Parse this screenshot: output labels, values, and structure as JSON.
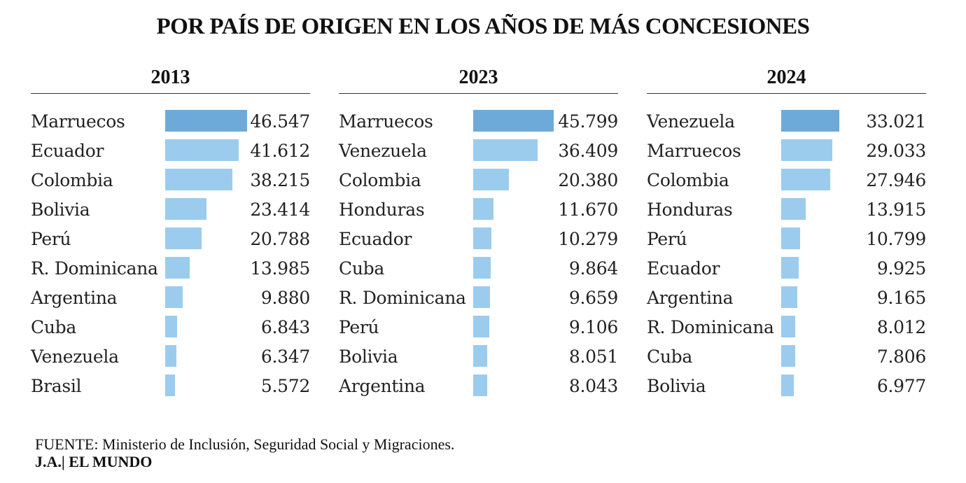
{
  "title": "POR PAÍS DE ORIGEN EN LOS AÑOS DE MÁS CONCESIONES",
  "source": "FUENTE: Ministerio de Inclusión, Seguridad Social y Migraciones.",
  "credit": "J.A.| EL MUNDO",
  "colors": {
    "top_bar": "#6eaad9",
    "bar": "#9ccced"
  },
  "chart_data": [
    {
      "type": "bar",
      "orientation": "horizontal",
      "title": "2013",
      "categories": [
        "Marruecos",
        "Ecuador",
        "Colombia",
        "Bolivia",
        "Perú",
        "R. Dominicana",
        "Argentina",
        "Cuba",
        "Venezuela",
        "Brasil"
      ],
      "values": [
        46547,
        41612,
        38215,
        23414,
        20788,
        13985,
        9880,
        6843,
        6347,
        5572
      ],
      "labels": [
        "46.547",
        "41.612",
        "38.215",
        "23.414",
        "20.788",
        "13.985",
        "9.880",
        "6.843",
        "6.347",
        "5.572"
      ],
      "xlim": [
        0,
        46547
      ]
    },
    {
      "type": "bar",
      "orientation": "horizontal",
      "title": "2023",
      "categories": [
        "Marruecos",
        "Venezuela",
        "Colombia",
        "Honduras",
        "Ecuador",
        "Cuba",
        "R. Dominicana",
        "Perú",
        "Bolivia",
        "Argentina"
      ],
      "values": [
        45799,
        36409,
        20380,
        11670,
        10279,
        9864,
        9659,
        9106,
        8051,
        8043
      ],
      "labels": [
        "45.799",
        "36.409",
        "20.380",
        "11.670",
        "10.279",
        "9.864",
        "9.659",
        "9.106",
        "8.051",
        "8.043"
      ],
      "xlim": [
        0,
        46547
      ]
    },
    {
      "type": "bar",
      "orientation": "horizontal",
      "title": "2024",
      "categories": [
        "Venezuela",
        "Marruecos",
        "Colombia",
        "Honduras",
        "Perú",
        "Ecuador",
        "Argentina",
        "R. Dominicana",
        "Cuba",
        "Bolivia"
      ],
      "values": [
        33021,
        29033,
        27946,
        13915,
        10799,
        9925,
        9165,
        8012,
        7806,
        6977
      ],
      "labels": [
        "33.021",
        "29.033",
        "27.946",
        "13.915",
        "10.799",
        "9.925",
        "9.165",
        "8.012",
        "7.806",
        "6.977"
      ],
      "xlim": [
        0,
        46547
      ]
    }
  ]
}
